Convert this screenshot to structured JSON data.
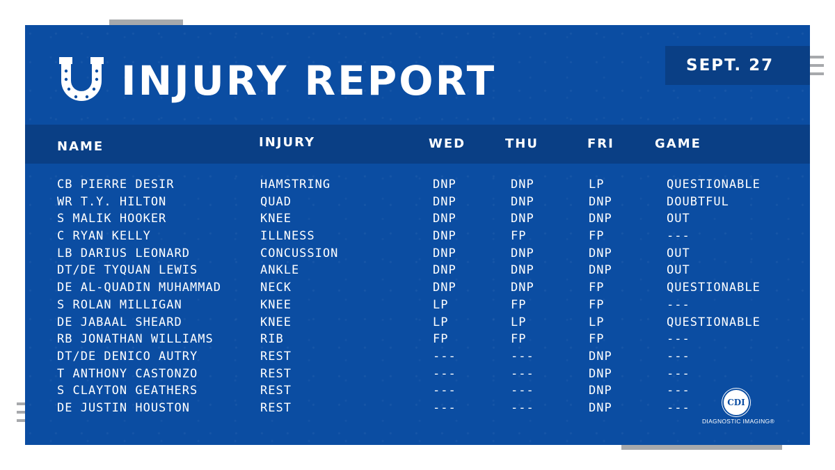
{
  "title": "INJURY REPORT",
  "date": "SEPT. 27",
  "logo": {
    "icon": "horseshoe-icon",
    "color": "#ffffff"
  },
  "headers": {
    "name": "NAME",
    "injury": "INJURY",
    "wed": "WED",
    "thu": "THU",
    "fri": "FRI",
    "game": "GAME"
  },
  "rows": [
    {
      "name": "CB PIERRE DESIR",
      "injury": "HAMSTRING",
      "wed": "DNP",
      "thu": "DNP",
      "fri": "LP",
      "game": "QUESTIONABLE"
    },
    {
      "name": "WR T.Y. HILTON",
      "injury": "QUAD",
      "wed": "DNP",
      "thu": "DNP",
      "fri": "DNP",
      "game": "DOUBTFUL"
    },
    {
      "name": "S MALIK HOOKER",
      "injury": "KNEE",
      "wed": "DNP",
      "thu": "DNP",
      "fri": "DNP",
      "game": "OUT"
    },
    {
      "name": "C RYAN KELLY",
      "injury": "ILLNESS",
      "wed": "DNP",
      "thu": "FP",
      "fri": "FP",
      "game": "---"
    },
    {
      "name": "LB DARIUS LEONARD",
      "injury": "CONCUSSION",
      "wed": "DNP",
      "thu": "DNP",
      "fri": "DNP",
      "game": "OUT"
    },
    {
      "name": "DT/DE TYQUAN LEWIS",
      "injury": "ANKLE",
      "wed": "DNP",
      "thu": "DNP",
      "fri": "DNP",
      "game": "OUT"
    },
    {
      "name": "DE AL-QUADIN MUHAMMAD",
      "injury": "NECK",
      "wed": "DNP",
      "thu": "DNP",
      "fri": "FP",
      "game": "QUESTIONABLE"
    },
    {
      "name": "S ROLAN MILLIGAN",
      "injury": "KNEE",
      "wed": "LP",
      "thu": "FP",
      "fri": "FP",
      "game": "---"
    },
    {
      "name": "DE JABAAL SHEARD",
      "injury": "KNEE",
      "wed": "LP",
      "thu": "LP",
      "fri": "LP",
      "game": "QUESTIONABLE"
    },
    {
      "name": "RB JONATHAN WILLIAMS",
      "injury": "RIB",
      "wed": "FP",
      "thu": "FP",
      "fri": "FP",
      "game": "---"
    },
    {
      "name": "DT/DE DENICO AUTRY",
      "injury": "REST",
      "wed": "---",
      "thu": "---",
      "fri": "DNP",
      "game": "---"
    },
    {
      "name": "T ANTHONY CASTONZO",
      "injury": "REST",
      "wed": "---",
      "thu": "---",
      "fri": "DNP",
      "game": "---"
    },
    {
      "name": "S CLAYTON GEATHERS",
      "injury": "REST",
      "wed": "---",
      "thu": "---",
      "fri": "DNP",
      "game": "---"
    },
    {
      "name": "DE JUSTIN HOUSTON",
      "injury": "REST",
      "wed": "---",
      "thu": "---",
      "fri": "DNP",
      "game": "---"
    }
  ],
  "sponsor": {
    "badge": "CDI",
    "text": "DIAGNOSTIC IMAGING®"
  },
  "colors": {
    "background": "#0b4da2",
    "band": "#0a3f85",
    "text": "#ffffff",
    "accent": "#a7a9ac"
  }
}
